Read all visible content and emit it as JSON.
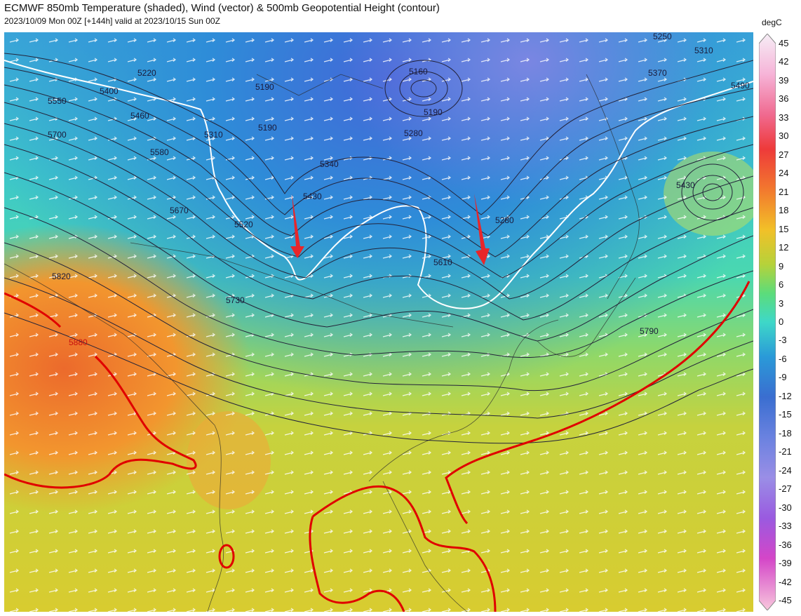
{
  "header": {
    "title": "ECMWF 850mb Temperature (shaded), Wind (vector) & 500mb Geopotential Height (contour)",
    "subtitle": "2023/10/09 Mon 00Z [+144h] valid at 2023/10/15 Sun 00Z"
  },
  "colorbar": {
    "unit": "degC",
    "ticks": [
      "45",
      "42",
      "39",
      "36",
      "33",
      "30",
      "27",
      "24",
      "21",
      "18",
      "15",
      "12",
      "9",
      "6",
      "3",
      "0",
      "-3",
      "-6",
      "-9",
      "-12",
      "-15",
      "-18",
      "-21",
      "-24",
      "-27",
      "-30",
      "-33",
      "-36",
      "-39",
      "-42",
      "-45"
    ],
    "colors": {
      "45": "#f4e4f4",
      "39": "#f6a0c8",
      "33": "#ee3a3a",
      "27": "#f2782e",
      "21": "#f2c028",
      "15": "#b6d23a",
      "9": "#5cdc7a",
      "3": "#3ed8c8",
      "0": "#36c6d8",
      "-6": "#2a9ad8",
      "-12": "#3a6ed0",
      "-18": "#6a82e0",
      "-24": "#9a8ee6",
      "-30": "#9a5ae0",
      "-36": "#d446c8",
      "-42": "#f23a8c"
    }
  },
  "contour_labels": [
    "5160",
    "5190",
    "5190",
    "5190",
    "5220",
    "5250",
    "5280",
    "5280",
    "5310",
    "5310",
    "5340",
    "5370",
    "5400",
    "5430",
    "5430",
    "5460",
    "5490",
    "5520",
    "5550",
    "5580",
    "5610",
    "5670",
    "5700",
    "5730",
    "5790",
    "5820",
    "5880"
  ],
  "annotations": {
    "arrows": [
      "red-arrow-left",
      "red-arrow-right"
    ],
    "arrow_color": "#e8262a"
  },
  "colors": {
    "contour": "#23233a",
    "temperature_zero_line": "#ffffff",
    "height_5880_line": "#e00000"
  }
}
